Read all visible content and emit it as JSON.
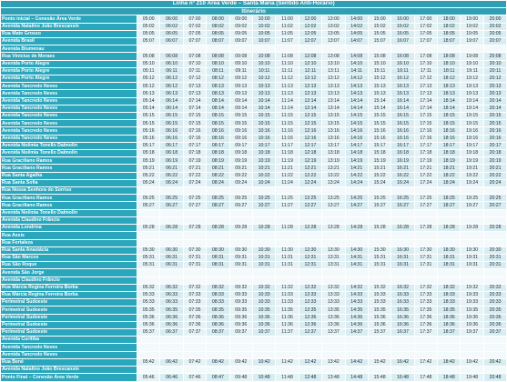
{
  "header": {
    "title": "Linha nº 210 Área Verde – Santa Maria (Sentido Anti-Horário)",
    "subtitle": "Itinerário"
  },
  "rows": [
    {
      "stop": "Ponto inicial – Conexão Área Verde",
      "times": [
        "05:00",
        "06:00",
        "07:00",
        "08:00",
        "09:00",
        "10:00",
        "11:00",
        "12:00",
        "13:00",
        "14:00",
        "15:00",
        "16:00",
        "17:00",
        "18:00",
        "19:00",
        "20:00"
      ]
    },
    {
      "stop": "Avenida Natalino João Brescansin",
      "times": [
        "05:02",
        "06:02",
        "07:02",
        "08:02",
        "09:02",
        "10:02",
        "11:02",
        "12:02",
        "13:02",
        "14:02",
        "15:02",
        "16:02",
        "17:02",
        "18:02",
        "19:02",
        "20:02"
      ]
    },
    {
      "stop": "Rua Mato Grosso",
      "times": [
        "05:05",
        "06:05",
        "07:05",
        "08:05",
        "09:05",
        "10:05",
        "11:05",
        "12:05",
        "13:05",
        "14:05",
        "15:05",
        "16:05",
        "17:05",
        "18:05",
        "19:05",
        "20:05"
      ]
    },
    {
      "stop": "Avenida Brasil",
      "times": [
        "05:07",
        "06:07",
        "07:07",
        "08:07",
        "09:07",
        "10:07",
        "11:07",
        "12:07",
        "13:07",
        "14:07",
        "15:07",
        "16:07",
        "17:07",
        "18:07",
        "19:07",
        "20:07"
      ]
    },
    {
      "stop": "Avenida Blumenau",
      "times": []
    },
    {
      "stop": "Rua Vinicius de Moraes",
      "times": [
        "05:08",
        "06:08",
        "07:08",
        "08:08",
        "09:08",
        "10:08",
        "11:08",
        "12:08",
        "13:08",
        "14:08",
        "15:08",
        "16:08",
        "17:08",
        "18:08",
        "19:08",
        "20:08"
      ]
    },
    {
      "stop": "Avenida Porto Alegre",
      "times": [
        "05:10",
        "06:10",
        "07:10",
        "08:10",
        "09:10",
        "10:10",
        "11:10",
        "12:10",
        "13:10",
        "14:10",
        "15:10",
        "16:10",
        "17:10",
        "18:10",
        "19:10",
        "20:10"
      ]
    },
    {
      "stop": "Avenida Porto Alegre",
      "times": [
        "05:11",
        "06:11",
        "07:11",
        "08:11",
        "09:11",
        "10:11",
        "11:11",
        "12:11",
        "13:11",
        "14:11",
        "15:11",
        "16:11",
        "17:11",
        "18:11",
        "19:11",
        "20:11"
      ]
    },
    {
      "stop": "Avenida Porto Alegre",
      "times": [
        "05:12",
        "06:12",
        "07:12",
        "08:12",
        "09:12",
        "10:12",
        "11:12",
        "12:12",
        "13:12",
        "14:12",
        "15:12",
        "16:12",
        "17:12",
        "18:12",
        "19:12",
        "20:12"
      ]
    },
    {
      "stop": "Avenida Tancredo Neves",
      "times": [
        "05:12",
        "06:12",
        "07:13",
        "08:13",
        "09:13",
        "10:13",
        "11:13",
        "12:13",
        "13:13",
        "14:13",
        "15:13",
        "16:13",
        "17:13",
        "18:13",
        "19:13",
        "20:13"
      ]
    },
    {
      "stop": "Avenida Tancredo Neves",
      "times": [
        "05:13",
        "06:13",
        "07:13",
        "08:13",
        "09:13",
        "10:13",
        "11:13",
        "12:13",
        "13:13",
        "14:13",
        "15:13",
        "16:13",
        "17:13",
        "18:13",
        "19:13",
        "20:13"
      ]
    },
    {
      "stop": "Avenida Tancredo Neves",
      "times": [
        "05:14",
        "06:14",
        "07:14",
        "08:14",
        "09:14",
        "10:14",
        "11:14",
        "12:14",
        "13:14",
        "14:14",
        "15:14",
        "16:14",
        "17:14",
        "18:14",
        "19:14",
        "20:14"
      ]
    },
    {
      "stop": "Avenida Tancredo Neves",
      "times": [
        "05:14",
        "06:14",
        "07:14",
        "08:14",
        "09:14",
        "10:14",
        "11:14",
        "12:14",
        "13:14",
        "14:14",
        "15:14",
        "16:14",
        "17:14",
        "18:14",
        "19:14",
        "20:14"
      ]
    },
    {
      "stop": "Avenida Tancredo Neves",
      "times": [
        "05:15",
        "06:15",
        "07:15",
        "08:15",
        "09:15",
        "10:15",
        "11:15",
        "12:15",
        "13:15",
        "14:15",
        "15:15",
        "16:15",
        "17:15",
        "18:15",
        "19:15",
        "20:15"
      ]
    },
    {
      "stop": "Avenida Tancredo Neves",
      "times": [
        "05:15",
        "06:15",
        "07:15",
        "08:15",
        "09:15",
        "10:15",
        "11:15",
        "12:15",
        "13:15",
        "14:15",
        "15:15",
        "16:15",
        "17:15",
        "18:15",
        "19:15",
        "20:15"
      ]
    },
    {
      "stop": "Avenida Tancredo Neves",
      "times": [
        "05:16",
        "06:16",
        "07:16",
        "08:16",
        "09:16",
        "10:16",
        "11:16",
        "12:16",
        "13:16",
        "14:16",
        "15:16",
        "16:16",
        "17:16",
        "18:16",
        "19:16",
        "20:16"
      ]
    },
    {
      "stop": "Avenida Tancredo Neves",
      "times": [
        "05:16",
        "06:16",
        "07:16",
        "08:16",
        "09:16",
        "10:16",
        "11:16",
        "12:16",
        "13:16",
        "14:16",
        "15:16",
        "16:16",
        "17:16",
        "18:16",
        "19:16",
        "20:16"
      ]
    },
    {
      "stop": "Avenida Noêmia Tonello Dalmolin",
      "times": [
        "05:17",
        "06:17",
        "07:17",
        "08:17",
        "09:17",
        "10:17",
        "11:17",
        "12:17",
        "13:17",
        "14:17",
        "15:17",
        "16:17",
        "17:17",
        "18:17",
        "19:17",
        "20:17"
      ]
    },
    {
      "stop": "Avenida Noêmia Tonello Dalmolin",
      "times": [
        "05:18",
        "06:18",
        "07:18",
        "08:18",
        "09:18",
        "10:18",
        "11:18",
        "12:18",
        "13:18",
        "14:18",
        "15:18",
        "16:18",
        "17:18",
        "18:18",
        "19:18",
        "20:18"
      ]
    },
    {
      "stop": "Rua Graciliano Ramos",
      "times": [
        "05:19",
        "06:19",
        "07:19",
        "08:19",
        "09:19",
        "10:19",
        "11:19",
        "12:19",
        "13:19",
        "14:19",
        "15:19",
        "16:19",
        "17:19",
        "18:19",
        "19:19",
        "20:19"
      ]
    },
    {
      "stop": "Rua Graciliano Ramos",
      "times": [
        "05:21",
        "06:21",
        "07:21",
        "08:21",
        "09:21",
        "10:21",
        "11:21",
        "12:21",
        "13:21",
        "14:21",
        "15:21",
        "16:21",
        "17:21",
        "18:21",
        "19:21",
        "20:21"
      ]
    },
    {
      "stop": "Rua Santa Agatha",
      "times": [
        "05:22",
        "06:22",
        "07:22",
        "08:22",
        "09:22",
        "10:22",
        "11:22",
        "12:22",
        "13:22",
        "14:22",
        "15:22",
        "16:22",
        "17:22",
        "18:22",
        "19:22",
        "20:22"
      ]
    },
    {
      "stop": "Rua Santa Sofia",
      "times": [
        "05:24",
        "06:24",
        "07:24",
        "08:24",
        "09:24",
        "10:24",
        "11:24",
        "12:24",
        "13:24",
        "14:24",
        "15:24",
        "16:24",
        "17:24",
        "18:24",
        "19:24",
        "20:24"
      ]
    },
    {
      "stop": "Rua Nossa Senhora do Sorriso",
      "times": []
    },
    {
      "stop": "Rua Graciliano Ramos",
      "times": [
        "05:25",
        "06:25",
        "07:25",
        "08:25",
        "09:25",
        "10:25",
        "11:25",
        "12:25",
        "13:25",
        "14:25",
        "15:25",
        "16:25",
        "17:25",
        "18:25",
        "19:25",
        "20:25"
      ]
    },
    {
      "stop": "Rua Graciliano Ramos",
      "times": [
        "05:27",
        "06:27",
        "07:27",
        "08:27",
        "09:27",
        "10:27",
        "11:27",
        "12:27",
        "13:27",
        "14:27",
        "15:27",
        "16:27",
        "17:27",
        "18:27",
        "19:27",
        "20:27"
      ]
    },
    {
      "stop": "Avenida Noêmia Tonello Dalmolin",
      "times": []
    },
    {
      "stop": "Avenida Claudino Frâncio",
      "times": []
    },
    {
      "stop": "Avenida Londrina",
      "times": [
        "05:28",
        "06:28",
        "07:28",
        "08:28",
        "09:28",
        "10:28",
        "11:28",
        "12:28",
        "13:28",
        "14:28",
        "15:28",
        "16:28",
        "17:28",
        "18:28",
        "19:28",
        "20:28"
      ]
    },
    {
      "stop": "Rua Assis",
      "times": []
    },
    {
      "stop": "Rua Fortaleza",
      "times": []
    },
    {
      "stop": "Rua Santa Anastácia",
      "times": [
        "05:30",
        "06:30",
        "07:30",
        "08:30",
        "09:30",
        "10:30",
        "11:30",
        "12:30",
        "13:30",
        "14:30",
        "15:30",
        "16:30",
        "17:30",
        "18:30",
        "19:30",
        "20:30"
      ]
    },
    {
      "stop": "Rua São Marcos",
      "times": [
        "05:31",
        "06:31",
        "07:31",
        "08:31",
        "09:31",
        "10:31",
        "11:31",
        "12:31",
        "13:31",
        "14:31",
        "15:31",
        "16:31",
        "17:31",
        "18:31",
        "19:31",
        "20:31"
      ]
    },
    {
      "stop": "Rua São Roque",
      "times": [
        "05:31",
        "06:31",
        "07:31",
        "08:31",
        "09:31",
        "10:31",
        "11:31",
        "12:31",
        "13:31",
        "14:31",
        "15:31",
        "16:31",
        "17:31",
        "18:31",
        "19:31",
        "20:31"
      ]
    },
    {
      "stop": "Avenida São Jorge",
      "times": []
    },
    {
      "stop": "Avenida Claudino Frâncio",
      "times": []
    },
    {
      "stop": "Rua Márcia Regina Ferreira Borba",
      "times": [
        "05:32",
        "06:32",
        "07:32",
        "08:32",
        "09:32",
        "10:32",
        "11:32",
        "12:32",
        "13:32",
        "14:32",
        "15:32",
        "16:32",
        "17:32",
        "18:32",
        "19:32",
        "20:32"
      ]
    },
    {
      "stop": "Rua Márcia Regina Ferreira Borba",
      "times": [
        "05:33",
        "06:33",
        "07:33",
        "08:33",
        "09:33",
        "10:33",
        "11:33",
        "12:33",
        "13:33",
        "14:33",
        "15:33",
        "16:33",
        "17:33",
        "18:33",
        "19:33",
        "20:33"
      ]
    },
    {
      "stop": "Perimetral Sudoeste",
      "times": [
        "05:33",
        "06:33",
        "07:33",
        "08:33",
        "09:33",
        "10:33",
        "11:33",
        "12:33",
        "13:33",
        "14:33",
        "15:33",
        "16:33",
        "17:33",
        "18:33",
        "19:33",
        "20:33"
      ]
    },
    {
      "stop": "Perimetral Sudoeste",
      "times": [
        "05:35",
        "06:35",
        "07:35",
        "08:35",
        "09:35",
        "10:35",
        "11:35",
        "12:35",
        "13:35",
        "14:35",
        "15:35",
        "16:35",
        "17:35",
        "18:35",
        "19:35",
        "20:35"
      ]
    },
    {
      "stop": "Perimetral Sudoeste",
      "times": [
        "05:36",
        "06:36",
        "07:36",
        "08:36",
        "09:36",
        "10:36",
        "11:36",
        "12:36",
        "13:36",
        "14:36",
        "15:36",
        "16:36",
        "17:36",
        "18:36",
        "19:36",
        "20:36"
      ]
    },
    {
      "stop": "Perimetral Sudoeste",
      "times": [
        "05:36",
        "06:36",
        "07:36",
        "08:36",
        "09:36",
        "10:36",
        "11:36",
        "12:36",
        "13:36",
        "14:36",
        "15:36",
        "16:36",
        "17:36",
        "18:36",
        "19:36",
        "20:36"
      ]
    },
    {
      "stop": "Perimetral Sudoeste",
      "times": [
        "05:37",
        "06:37",
        "07:37",
        "08:37",
        "09:37",
        "10:37",
        "11:37",
        "12:37",
        "13:37",
        "14:37",
        "15:37",
        "16:37",
        "17:37",
        "18:37",
        "19:37",
        "20:37"
      ]
    },
    {
      "stop": "Avenida Curitiba",
      "times": []
    },
    {
      "stop": "Avenida Tancredo Neves",
      "times": []
    },
    {
      "stop": "Avenida Tancredo Neves",
      "times": []
    },
    {
      "stop": "Rua Bené",
      "times": [
        "05:42",
        "06:42",
        "07:42",
        "08:42",
        "09:42",
        "10:42",
        "11:42",
        "12:42",
        "13:42",
        "14:42",
        "15:42",
        "16:42",
        "17:42",
        "18:42",
        "19:42",
        "20:42"
      ]
    },
    {
      "stop": "Avenida Natalino João Brescansin",
      "times": []
    },
    {
      "stop": "Ponto Final – Conexão Área Verde",
      "times": [
        "05:46",
        "06:46",
        "07:46",
        "08:47",
        "09:48",
        "10:48",
        "11:48",
        "12:48",
        "13:48",
        "14:48",
        "15:48",
        "16:48",
        "17:48",
        "18:48",
        "19:48",
        "20:48"
      ]
    }
  ]
}
